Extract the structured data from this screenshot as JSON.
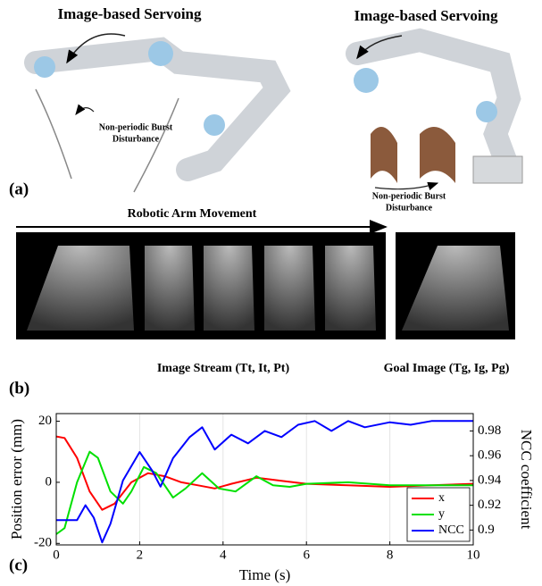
{
  "figure": {
    "a_title_left": "Image-based Servoing",
    "a_title_right": "Image-based Servoing",
    "a_note_left": [
      "Non-periodic Burst",
      "Disturbance"
    ],
    "a_note_right": [
      "Non-periodic Burst",
      "Disturbance"
    ],
    "a_label": "(a)",
    "b_arrow_label": "Robotic Arm Movement",
    "b_stream_label": "Image Stream (Tt, It, Pt)",
    "b_goal_label": "Goal Image (Tg, Ig, Pg)",
    "b_label": "(b)",
    "c_label": "(c)"
  },
  "chart_data": {
    "type": "line",
    "x_label": "Time (s)",
    "y_label": "Position error (mm)",
    "y2_label": "NCC coefficient",
    "xlim": [
      0,
      10
    ],
    "xticks": [
      0,
      2,
      4,
      6,
      8,
      10
    ],
    "ylim": [
      -20.5,
      22.5
    ],
    "yticks": [
      -20,
      0,
      20
    ],
    "y2lim": [
      0.888,
      0.994
    ],
    "y2ticks": [
      0.9,
      0.92,
      0.94,
      0.96,
      0.98
    ],
    "grid": true,
    "legend": "lower right",
    "series": [
      {
        "name": "x",
        "color": "#ff0000",
        "x": [
          0,
          0.2,
          0.5,
          0.8,
          1.1,
          1.4,
          1.8,
          2.2,
          2.6,
          3.0,
          3.4,
          3.8,
          4.2,
          4.8,
          5.4,
          6,
          7,
          8,
          9,
          10
        ],
        "values": [
          15,
          14.5,
          8,
          -3,
          -9,
          -7,
          0,
          3,
          2,
          0,
          -1,
          -2,
          -0.5,
          1.5,
          0.5,
          -0.5,
          -1,
          -1.5,
          -1,
          -0.5
        ]
      },
      {
        "name": "y",
        "color": "#00e000",
        "x": [
          0,
          0.2,
          0.5,
          0.8,
          1.0,
          1.3,
          1.6,
          1.8,
          2.1,
          2.4,
          2.8,
          3.1,
          3.5,
          3.9,
          4.3,
          4.8,
          5.2,
          5.6,
          6,
          7,
          8,
          9,
          10
        ],
        "values": [
          -17,
          -15,
          0,
          10,
          8,
          -3,
          -7,
          -3,
          5,
          3,
          -5,
          -2,
          3,
          -2,
          -3,
          2,
          -1,
          -1.5,
          -0.5,
          0,
          -1,
          -1,
          -1
        ]
      },
      {
        "name": "NCC",
        "color": "#0000ff",
        "axis": "y2",
        "x": [
          0,
          0.5,
          0.7,
          0.9,
          1.1,
          1.3,
          1.6,
          2.0,
          2.3,
          2.5,
          2.8,
          3.2,
          3.5,
          3.8,
          4.2,
          4.6,
          5.0,
          5.4,
          5.8,
          6.2,
          6.6,
          7.0,
          7.4,
          8,
          8.5,
          9,
          10
        ],
        "values": [
          0.908,
          0.908,
          0.92,
          0.91,
          0.89,
          0.905,
          0.94,
          0.963,
          0.948,
          0.935,
          0.958,
          0.975,
          0.983,
          0.965,
          0.977,
          0.97,
          0.98,
          0.975,
          0.985,
          0.988,
          0.98,
          0.988,
          0.983,
          0.987,
          0.985,
          0.988,
          0.988
        ]
      }
    ]
  }
}
